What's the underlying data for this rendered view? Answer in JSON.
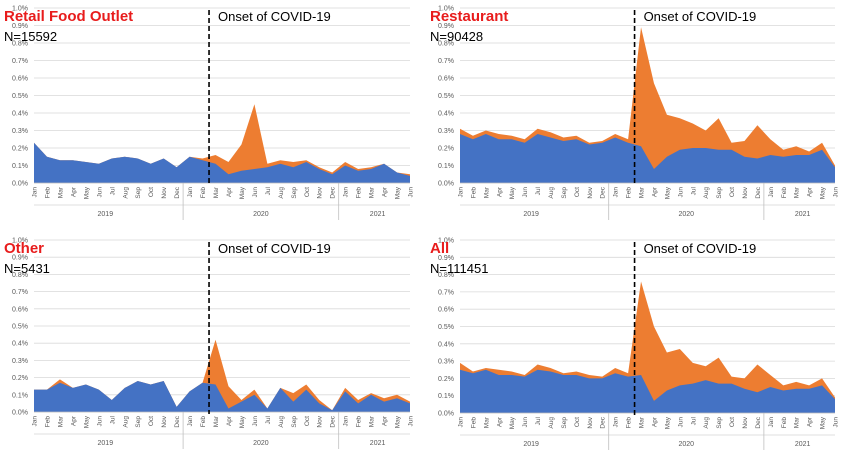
{
  "colors": {
    "blue": "#4472C4",
    "orange": "#ED7D31",
    "title_red": "#E81C1C",
    "grid": "#D9D9D9",
    "axis_text": "#595959"
  },
  "chart_data": [
    {
      "type": "area",
      "title": "Retail Food Outlet",
      "subtitle": "N=15592",
      "annotation": "Onset of COVID-19",
      "onset_index": 13.5,
      "ylim": [
        0,
        1.0
      ],
      "yticks": [
        "0.0%",
        "0.1%",
        "0.2%",
        "0.3%",
        "0.4%",
        "0.5%",
        "0.6%",
        "0.7%",
        "0.8%",
        "0.9%",
        "1.0%"
      ],
      "months": [
        "Jan",
        "Feb",
        "Mar",
        "Apr",
        "May",
        "Jun",
        "Jul",
        "Aug",
        "Sep",
        "Oct",
        "Nov",
        "Dec",
        "Jan",
        "Feb",
        "Mar",
        "Apr",
        "May",
        "Jun",
        "Jul",
        "Aug",
        "Sep",
        "Oct",
        "Nov",
        "Dec",
        "Jan",
        "Feb",
        "Mar",
        "Apr",
        "May",
        "Jun"
      ],
      "years": [
        {
          "label": "2019",
          "start": 0,
          "end": 11
        },
        {
          "label": "2020",
          "start": 12,
          "end": 23
        },
        {
          "label": "2021",
          "start": 24,
          "end": 29
        }
      ],
      "grid": true,
      "series": [
        {
          "values": [
            0.23,
            0.15,
            0.13,
            0.13,
            0.12,
            0.11,
            0.14,
            0.15,
            0.14,
            0.11,
            0.14,
            0.09,
            0.15,
            0.13,
            0.11,
            0.05,
            0.07,
            0.08,
            0.09,
            0.11,
            0.09,
            0.12,
            0.08,
            0.05,
            0.1,
            0.07,
            0.08,
            0.11,
            0.06,
            0.04
          ]
        },
        {
          "values": [
            0.23,
            0.15,
            0.13,
            0.13,
            0.12,
            0.11,
            0.14,
            0.15,
            0.14,
            0.11,
            0.14,
            0.09,
            0.15,
            0.14,
            0.16,
            0.12,
            0.22,
            0.45,
            0.11,
            0.13,
            0.12,
            0.13,
            0.09,
            0.06,
            0.12,
            0.08,
            0.09,
            0.11,
            0.06,
            0.05
          ]
        }
      ]
    },
    {
      "type": "area",
      "title": "Restaurant",
      "subtitle": "N=90428",
      "annotation": "Onset of COVID-19",
      "onset_index": 13.5,
      "ylim": [
        0,
        1.0
      ],
      "yticks": [
        "0.0%",
        "0.1%",
        "0.2%",
        "0.3%",
        "0.4%",
        "0.5%",
        "0.6%",
        "0.7%",
        "0.8%",
        "0.9%",
        "1.0%"
      ],
      "months": [
        "Jan",
        "Feb",
        "Mar",
        "Apr",
        "May",
        "Jun",
        "Jul",
        "Aug",
        "Sep",
        "Oct",
        "Nov",
        "Dec",
        "Jan",
        "Feb",
        "Mar",
        "Apr",
        "May",
        "Jun",
        "Jul",
        "Aug",
        "Sep",
        "Oct",
        "Nov",
        "Dec",
        "Jan",
        "Feb",
        "Mar",
        "Apr",
        "May",
        "Jun"
      ],
      "years": [
        {
          "label": "2019",
          "start": 0,
          "end": 11
        },
        {
          "label": "2020",
          "start": 12,
          "end": 23
        },
        {
          "label": "2021",
          "start": 24,
          "end": 29
        }
      ],
      "grid": true,
      "series": [
        {
          "values": [
            0.28,
            0.25,
            0.28,
            0.25,
            0.25,
            0.23,
            0.28,
            0.26,
            0.24,
            0.25,
            0.22,
            0.23,
            0.26,
            0.23,
            0.21,
            0.08,
            0.15,
            0.19,
            0.2,
            0.2,
            0.19,
            0.19,
            0.15,
            0.14,
            0.16,
            0.15,
            0.16,
            0.16,
            0.19,
            0.09
          ]
        },
        {
          "values": [
            0.31,
            0.27,
            0.3,
            0.28,
            0.27,
            0.25,
            0.31,
            0.29,
            0.26,
            0.27,
            0.23,
            0.24,
            0.28,
            0.25,
            0.89,
            0.57,
            0.39,
            0.37,
            0.34,
            0.3,
            0.37,
            0.23,
            0.24,
            0.33,
            0.25,
            0.19,
            0.21,
            0.18,
            0.23,
            0.1
          ]
        }
      ]
    },
    {
      "type": "area",
      "title": "Other",
      "subtitle": "N=5431",
      "annotation": "Onset of COVID-19",
      "onset_index": 13.5,
      "ylim": [
        0,
        1.0
      ],
      "yticks": [
        "0.0%",
        "0.1%",
        "0.2%",
        "0.3%",
        "0.4%",
        "0.5%",
        "0.6%",
        "0.7%",
        "0.8%",
        "0.9%",
        "1.0%"
      ],
      "months": [
        "Jan",
        "Feb",
        "Mar",
        "Apr",
        "May",
        "Jun",
        "Jul",
        "Aug",
        "Sep",
        "Oct",
        "Nov",
        "Dec",
        "Jan",
        "Feb",
        "Mar",
        "Apr",
        "May",
        "Jun",
        "Jul",
        "Aug",
        "Sep",
        "Oct",
        "Nov",
        "Dec",
        "Jan",
        "Feb",
        "Mar",
        "Apr",
        "May",
        "Jun"
      ],
      "years": [
        {
          "label": "2019",
          "start": 0,
          "end": 11
        },
        {
          "label": "2020",
          "start": 12,
          "end": 23
        },
        {
          "label": "2021",
          "start": 24,
          "end": 29
        }
      ],
      "grid": true,
      "series": [
        {
          "values": [
            0.13,
            0.13,
            0.17,
            0.14,
            0.16,
            0.13,
            0.07,
            0.14,
            0.18,
            0.16,
            0.18,
            0.03,
            0.12,
            0.17,
            0.16,
            0.02,
            0.06,
            0.1,
            0.02,
            0.14,
            0.06,
            0.13,
            0.05,
            0.01,
            0.12,
            0.05,
            0.1,
            0.06,
            0.08,
            0.05
          ]
        },
        {
          "values": [
            0.13,
            0.13,
            0.19,
            0.14,
            0.16,
            0.13,
            0.07,
            0.14,
            0.18,
            0.16,
            0.18,
            0.03,
            0.12,
            0.17,
            0.42,
            0.15,
            0.07,
            0.13,
            0.02,
            0.14,
            0.11,
            0.16,
            0.07,
            0.01,
            0.14,
            0.07,
            0.11,
            0.08,
            0.1,
            0.06
          ]
        }
      ]
    },
    {
      "type": "area",
      "title": "All",
      "subtitle": "N=111451",
      "annotation": "Onset of COVID-19",
      "onset_index": 13.5,
      "ylim": [
        0,
        1.0
      ],
      "yticks": [
        "0.0%",
        "0.1%",
        "0.2%",
        "0.3%",
        "0.4%",
        "0.5%",
        "0.6%",
        "0.7%",
        "0.8%",
        "0.9%",
        "1.0%"
      ],
      "months": [
        "Jan",
        "Feb",
        "Mar",
        "Apr",
        "May",
        "Jun",
        "Jul",
        "Aug",
        "Sep",
        "Oct",
        "Nov",
        "Dec",
        "Jan",
        "Feb",
        "Mar",
        "Apr",
        "May",
        "Jun",
        "Jul",
        "Aug",
        "Sep",
        "Oct",
        "Nov",
        "Dec",
        "Jan",
        "Feb",
        "Mar",
        "Apr",
        "May",
        "Jun"
      ],
      "years": [
        {
          "label": "2019",
          "start": 0,
          "end": 11
        },
        {
          "label": "2020",
          "start": 12,
          "end": 23
        },
        {
          "label": "2021",
          "start": 24,
          "end": 29
        }
      ],
      "grid": true,
      "series": [
        {
          "values": [
            0.25,
            0.23,
            0.25,
            0.22,
            0.22,
            0.21,
            0.25,
            0.24,
            0.22,
            0.22,
            0.2,
            0.2,
            0.23,
            0.21,
            0.22,
            0.07,
            0.13,
            0.16,
            0.17,
            0.19,
            0.17,
            0.17,
            0.14,
            0.12,
            0.15,
            0.13,
            0.14,
            0.14,
            0.16,
            0.08
          ]
        },
        {
          "values": [
            0.29,
            0.24,
            0.26,
            0.25,
            0.24,
            0.22,
            0.28,
            0.26,
            0.23,
            0.24,
            0.22,
            0.21,
            0.26,
            0.23,
            0.76,
            0.5,
            0.35,
            0.37,
            0.29,
            0.27,
            0.32,
            0.21,
            0.2,
            0.28,
            0.22,
            0.16,
            0.18,
            0.16,
            0.2,
            0.09
          ]
        }
      ]
    }
  ]
}
